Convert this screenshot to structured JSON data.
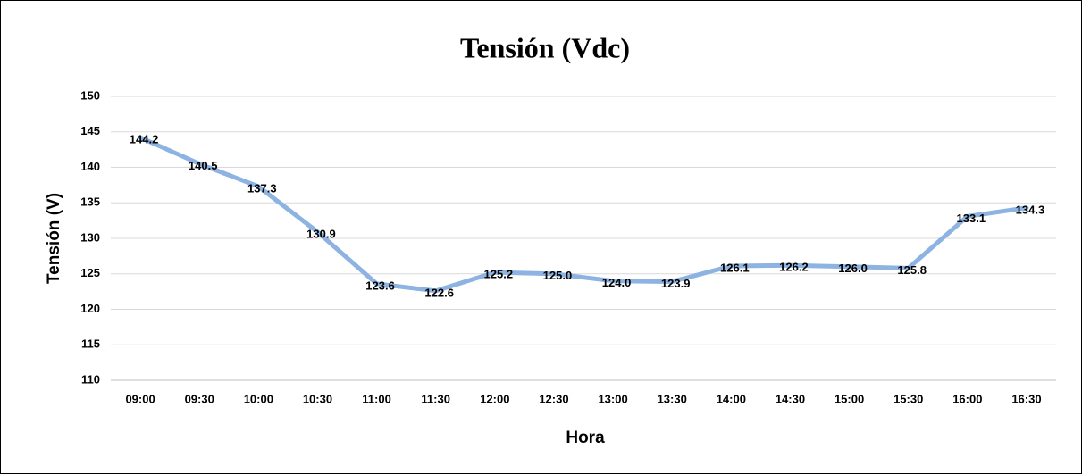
{
  "chart_data": {
    "type": "line",
    "title": "Tensión (Vdc)",
    "xlabel": "Hora",
    "ylabel": "Tensión (V)",
    "categories": [
      "09:00",
      "09:30",
      "10:00",
      "10:30",
      "11:00",
      "11:30",
      "12:00",
      "12:30",
      "13:00",
      "13:30",
      "14:00",
      "14:30",
      "15:00",
      "15:30",
      "16:00",
      "16:30"
    ],
    "series": [
      {
        "name": "Tensión",
        "color": "#8db3e2",
        "values": [
          144.2,
          140.5,
          137.3,
          130.9,
          123.6,
          122.6,
          125.2,
          125.0,
          124.0,
          123.9,
          126.1,
          126.2,
          126.0,
          125.8,
          133.1,
          134.3
        ],
        "value_labels": [
          "144.2",
          "140.5",
          "137.3",
          "130.9",
          "123.6",
          "122.6",
          "125.2",
          "125.0",
          "124.0",
          "123.9",
          "126.1",
          "126.2",
          "126.0",
          "125.8",
          "133.1",
          "134.3"
        ]
      }
    ],
    "ylim": [
      110,
      150
    ],
    "yticks": [
      110,
      115,
      120,
      125,
      130,
      135,
      140,
      145,
      150
    ],
    "grid": true
  }
}
